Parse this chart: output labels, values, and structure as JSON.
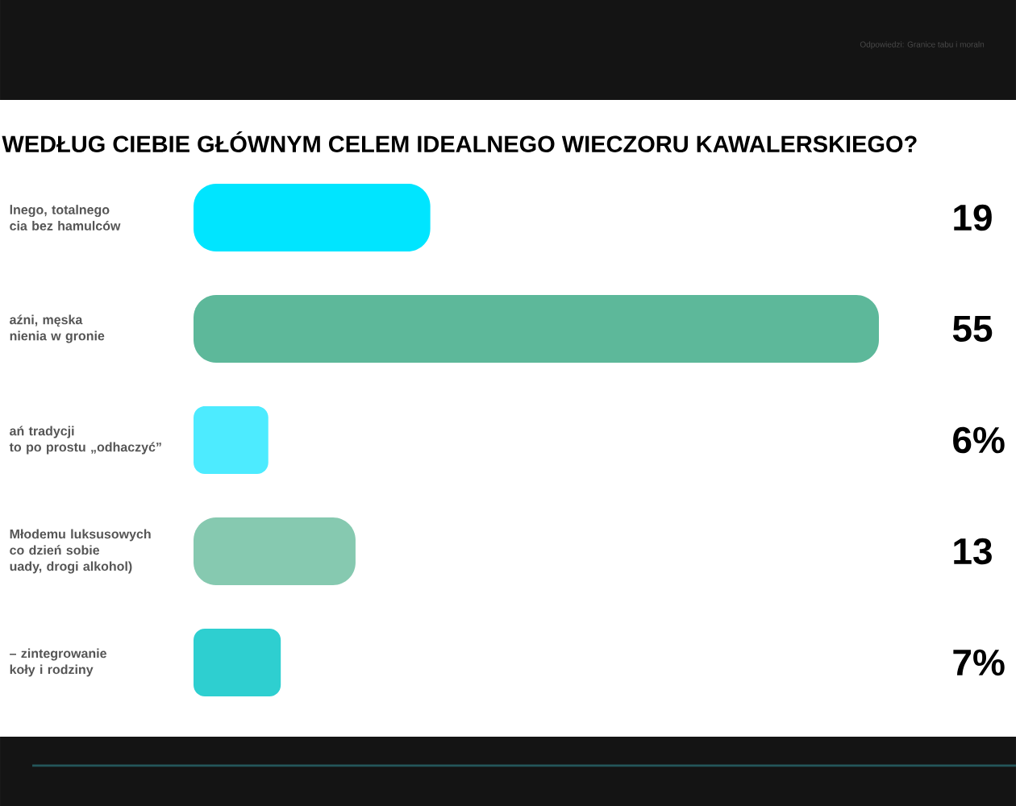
{
  "chart_data": {
    "type": "bar",
    "orientation": "horizontal",
    "title": "WEDŁUG CIEBIE GŁÓWNYM CELEM IDEALNEGO WIECZORU KAWALERSKIEGO?",
    "annotations": [
      "Odpowiedzi: Granice tabu i moraln"
    ],
    "categories": [
      "lnego, totalnego\ncia bez hamulców",
      "aźni, męska\nnienia w gronie",
      "ań tradycji\nto po prostu „odhaczyć”",
      "Młodemu luksusowych\nco dzień sobie\nuady, drogi alkohol)",
      "– zintegrowanie\nkoły i rodziny"
    ],
    "values": [
      19,
      55,
      6,
      13,
      7
    ],
    "colors": [
      "#00e5ff",
      "#5db89a",
      "#4debff",
      "#86c9b0",
      "#2ecfd0"
    ],
    "value_labels": [
      "19",
      "55",
      "6%",
      "13",
      "7%"
    ],
    "tick_labels": "y"
  }
}
